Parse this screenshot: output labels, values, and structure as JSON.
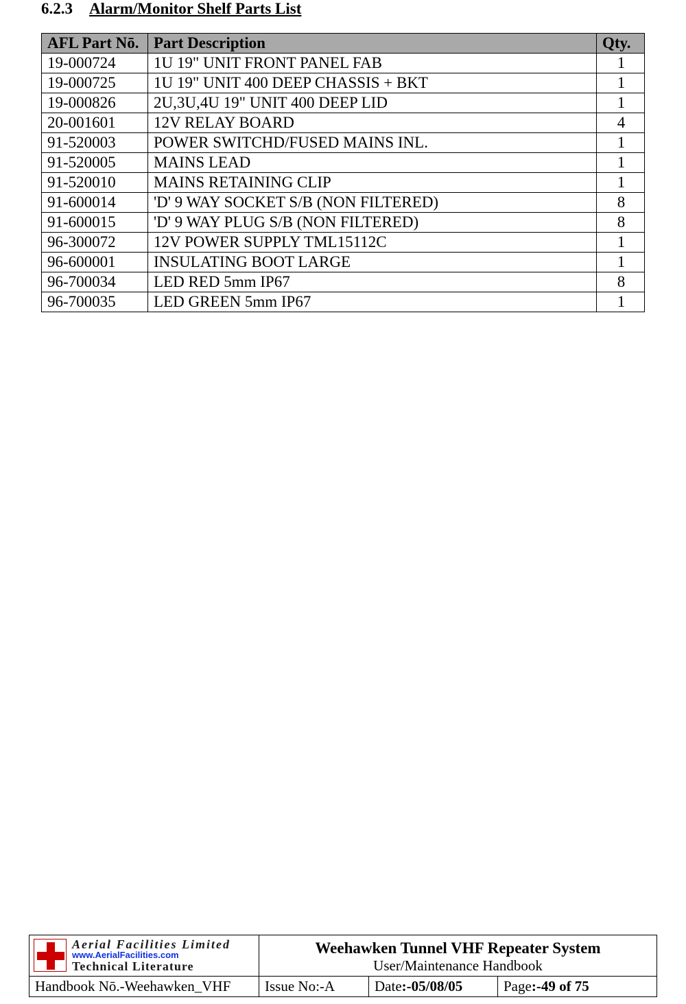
{
  "heading": {
    "number": "6.2.3",
    "title": "Alarm/Monitor Shelf Parts List"
  },
  "table": {
    "columns": [
      "AFL Part Nō.",
      "Part Description",
      "Qty."
    ],
    "rows": [
      [
        "19-000724",
        "1U 19\" UNIT FRONT PANEL FAB",
        "1"
      ],
      [
        "19-000725",
        "1U 19\" UNIT 400 DEEP CHASSIS + BKT",
        "1"
      ],
      [
        "19-000826",
        "2U,3U,4U 19\" UNIT 400 DEEP LID",
        "1"
      ],
      [
        "20-001601",
        "12V RELAY BOARD",
        "4"
      ],
      [
        "91-520003",
        "POWER SWITCHD/FUSED MAINS INL.",
        "1"
      ],
      [
        "91-520005",
        "MAINS LEAD",
        "1"
      ],
      [
        "91-520010",
        "MAINS RETAINING CLIP",
        "1"
      ],
      [
        "91-600014",
        "'D' 9 WAY SOCKET S/B (NON FILTERED)",
        "8"
      ],
      [
        "91-600015",
        "'D' 9 WAY PLUG S/B (NON FILTERED)",
        "8"
      ],
      [
        "96-300072",
        "12V POWER SUPPLY TML15112C",
        "1"
      ],
      [
        "96-600001",
        "INSULATING BOOT LARGE",
        "1"
      ],
      [
        "96-700034",
        "LED RED 5mm IP67",
        "8"
      ],
      [
        "96-700035",
        "LED GREEN 5mm IP67",
        "1"
      ]
    ]
  },
  "footer": {
    "logo": {
      "line1": "Aerial  Facilities  Limited",
      "url": "www.AerialFacilities.com",
      "line3": "Technical Literature"
    },
    "title_main": "Weehawken Tunnel VHF Repeater System",
    "title_sub": "User/Maintenance Handbook",
    "handbook_label": "Handbook Nō.-",
    "handbook_value": "Weehawken_VHF",
    "issue_label": "Issue No:-",
    "issue_value": "A",
    "date_label": "Date",
    "date_value": ":-05/08/05",
    "page_label": "Page",
    "page_value": ":-49 of 75"
  }
}
